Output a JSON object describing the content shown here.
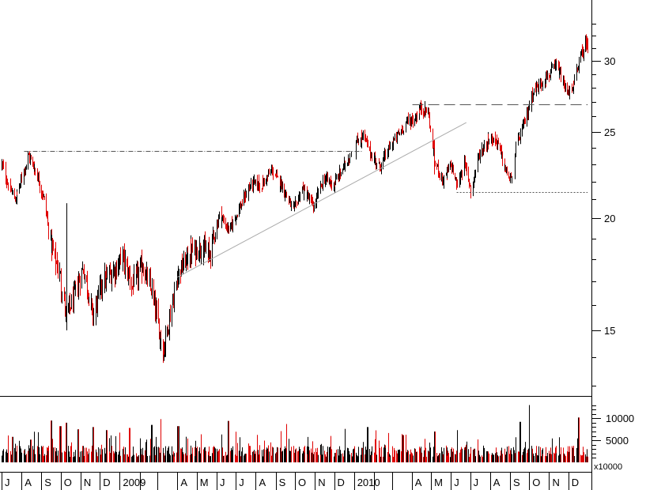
{
  "colors": {
    "up": "#000000",
    "down": "#e00000",
    "frame": "#000000",
    "trendline": "#aaaaaa",
    "background": "#ffffff"
  },
  "chart_data": [
    {
      "type": "candlestick",
      "title": "",
      "scale": "log",
      "ylim": [
        12.5,
        34
      ],
      "y_ticks": [
        15,
        20,
        25,
        30
      ],
      "y_tick_labels": [
        "15",
        "20",
        "25",
        "30"
      ],
      "grid": false,
      "x_month_labels": [
        "J",
        "A",
        "S",
        "O",
        "N",
        "D",
        "2009",
        "A",
        "M",
        "J",
        "J",
        "A",
        "S",
        "O",
        "N",
        "D",
        "2010",
        "A",
        "M",
        "J",
        "J",
        "A",
        "S",
        "O",
        "N",
        "D"
      ],
      "x_months": [
        "2008-07",
        "2008-08",
        "2008-09",
        "2008-10",
        "2008-11",
        "2008-12",
        "2009-01",
        "2009-04",
        "2009-05",
        "2009-06",
        "2009-07",
        "2009-08",
        "2009-09",
        "2009-10",
        "2009-11",
        "2009-12",
        "2010-01",
        "2010-04",
        "2010-05",
        "2010-06",
        "2010-07",
        "2010-08",
        "2010-09",
        "2010-10",
        "2010-11",
        "2010-12"
      ],
      "price_anchors": [
        [
          "2008-07-01",
          23.0
        ],
        [
          "2008-07-10",
          21.9
        ],
        [
          "2008-07-22",
          21.0
        ],
        [
          "2008-08-01",
          22.2
        ],
        [
          "2008-08-12",
          23.5
        ],
        [
          "2008-08-25",
          22.4
        ],
        [
          "2008-09-05",
          21.0
        ],
        [
          "2008-09-15",
          18.8
        ],
        [
          "2008-09-30",
          17.2
        ],
        [
          "2008-10-10",
          15.6
        ],
        [
          "2008-10-22",
          16.4
        ],
        [
          "2008-11-05",
          17.6
        ],
        [
          "2008-11-20",
          15.6
        ],
        [
          "2008-12-05",
          17.0
        ],
        [
          "2008-12-20",
          17.4
        ],
        [
          "2009-01-06",
          18.1
        ],
        [
          "2009-01-20",
          16.8
        ],
        [
          "2009-02-05",
          17.7
        ],
        [
          "2009-02-20",
          16.6
        ],
        [
          "2009-03-09",
          14.2
        ],
        [
          "2009-03-20",
          15.6
        ],
        [
          "2009-04-01",
          17.3
        ],
        [
          "2009-04-20",
          18.3
        ],
        [
          "2009-05-08",
          18.6
        ],
        [
          "2009-05-20",
          18.2
        ],
        [
          "2009-06-05",
          20.2
        ],
        [
          "2009-06-20",
          19.4
        ],
        [
          "2009-07-10",
          20.8
        ],
        [
          "2009-07-25",
          21.9
        ],
        [
          "2009-08-10",
          21.8
        ],
        [
          "2009-08-25",
          22.6
        ],
        [
          "2009-09-10",
          21.8
        ],
        [
          "2009-09-28",
          20.4
        ],
        [
          "2009-10-12",
          21.6
        ],
        [
          "2009-10-30",
          20.6
        ],
        [
          "2009-11-15",
          22.2
        ],
        [
          "2009-11-30",
          21.8
        ],
        [
          "2009-12-15",
          22.8
        ],
        [
          "2010-01-05",
          24.3
        ],
        [
          "2010-01-15",
          24.8
        ],
        [
          "2010-01-28",
          23.5
        ],
        [
          "2010-02-10",
          22.9
        ],
        [
          "2010-02-25",
          24.0
        ],
        [
          "2010-03-10",
          24.8
        ],
        [
          "2010-03-25",
          25.7
        ],
        [
          "2010-04-05",
          25.8
        ],
        [
          "2010-04-15",
          26.6
        ],
        [
          "2010-04-26",
          26.3
        ],
        [
          "2010-05-06",
          23.2
        ],
        [
          "2010-05-20",
          22.0
        ],
        [
          "2010-06-01",
          23.0
        ],
        [
          "2010-06-10",
          21.7
        ],
        [
          "2010-06-22",
          23.0
        ],
        [
          "2010-07-02",
          21.5
        ],
        [
          "2010-07-15",
          23.6
        ],
        [
          "2010-07-30",
          24.6
        ],
        [
          "2010-08-12",
          24.4
        ],
        [
          "2010-08-25",
          22.6
        ],
        [
          "2010-09-03",
          22.0
        ],
        [
          "2010-09-10",
          24.0
        ],
        [
          "2010-09-25",
          25.8
        ],
        [
          "2010-10-05",
          27.6
        ],
        [
          "2010-10-20",
          28.4
        ],
        [
          "2010-11-01",
          29.0
        ],
        [
          "2010-11-12",
          29.6
        ],
        [
          "2010-11-25",
          28.0
        ],
        [
          "2010-12-06",
          27.6
        ],
        [
          "2010-12-15",
          29.6
        ],
        [
          "2010-12-28",
          31.5
        ],
        [
          "2010-12-31",
          31.2
        ]
      ],
      "reference_lines": [
        {
          "style": "dash-dot",
          "start": "2008-08-05",
          "end": "2010-01-15",
          "value": 23.8
        },
        {
          "style": "long-dash",
          "start": "2010-04-02",
          "end": "2010-12-31",
          "value": 26.8
        },
        {
          "style": "dotted",
          "start": "2010-06-10",
          "end": "2010-12-31",
          "value": 21.4
        },
        {
          "style": "thin-trend",
          "start": "2009-04-01",
          "start_value": 17.2,
          "end": "2010-06-25",
          "end_value": 25.6
        }
      ]
    },
    {
      "type": "bar",
      "title": "",
      "ylim": [
        0,
        14000
      ],
      "y_ticks": [
        5000,
        10000
      ],
      "y_tick_labels": [
        "5000",
        "10000"
      ],
      "unit_label": "x10000",
      "volume_spikes": [
        [
          "2008-07-18",
          5800
        ],
        [
          "2008-09-15",
          9500
        ],
        [
          "2008-09-30",
          8200
        ],
        [
          "2008-10-10",
          9000
        ],
        [
          "2008-10-28",
          7500
        ],
        [
          "2008-11-21",
          8000
        ],
        [
          "2008-12-12",
          7300
        ],
        [
          "2009-01-16",
          7800
        ],
        [
          "2009-02-20",
          8500
        ],
        [
          "2009-03-06",
          9800
        ],
        [
          "2009-04-02",
          8200
        ],
        [
          "2009-06-19",
          9400
        ],
        [
          "2009-09-18",
          8700
        ],
        [
          "2009-12-18",
          7600
        ],
        [
          "2010-01-22",
          8000
        ],
        [
          "2010-03-19",
          6200
        ],
        [
          "2010-05-07",
          7000
        ],
        [
          "2010-09-17",
          9200
        ],
        [
          "2010-10-01",
          13000
        ],
        [
          "2010-12-17",
          10200
        ]
      ]
    }
  ]
}
